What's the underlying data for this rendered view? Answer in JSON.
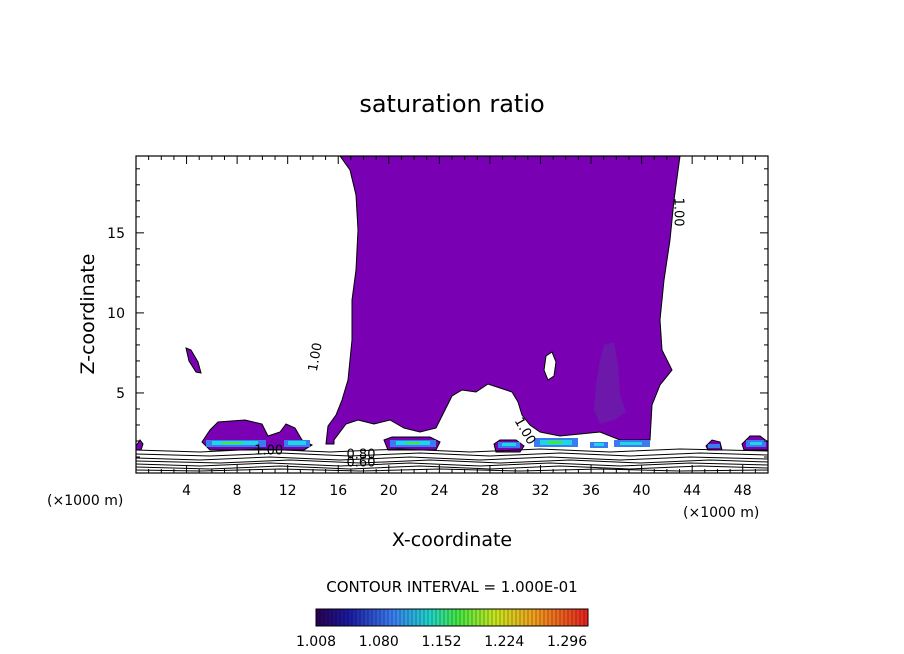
{
  "chart_data": {
    "type": "heatmap",
    "title": "saturation ratio",
    "xlabel": "X-coordinate",
    "ylabel": "Z-coordinate",
    "x_unit": "(×1000 m)",
    "x_ticks": [
      "4",
      "8",
      "12",
      "16",
      "20",
      "24",
      "28",
      "32",
      "36",
      "40",
      "44",
      "48"
    ],
    "x_tick_values": [
      4,
      8,
      12,
      16,
      20,
      24,
      28,
      32,
      36,
      40,
      44,
      48
    ],
    "y_ticks": [
      "5",
      "10",
      "15"
    ],
    "y_tick_values": [
      5,
      10,
      15
    ],
    "xlim": [
      0,
      50
    ],
    "ylim": [
      0,
      19.8
    ],
    "contour_interval": "CONTOUR INTERVAL = 1.000E-01",
    "colorbar_labels": [
      "1.008",
      "1.080",
      "1.152",
      "1.224",
      "1.296"
    ],
    "colorbar_range": [
      1.008,
      1.32
    ],
    "contour_labels": [
      {
        "text": "1.00",
        "x": 14.5,
        "y": 7.2,
        "angle": -80
      },
      {
        "text": "1.00",
        "x": 42.6,
        "y": 16.3,
        "angle": 90
      },
      {
        "text": "1.00",
        "x": 30.5,
        "y": 2.5,
        "angle": 60
      },
      {
        "text": "1.00",
        "x": 10.5,
        "y": 1.15,
        "angle": 0
      },
      {
        "text": "0.80",
        "x": 17.8,
        "y": 0.9,
        "angle": 0
      },
      {
        "text": "0.60",
        "x": 17.8,
        "y": 0.4,
        "angle": 0
      }
    ],
    "supersaturated_regions": [
      {
        "name": "main-plume",
        "value_range": [
          1.0,
          1.04
        ]
      },
      {
        "name": "low-level-cells",
        "value_range": [
          1.0,
          1.2
        ]
      }
    ],
    "colors": {
      "purple": "#7a00b4",
      "dark_purple": "#6a1fa8",
      "blue": "#3a7cf0",
      "cyan": "#1ed6e6",
      "green": "#44e644"
    },
    "grid": false
  }
}
